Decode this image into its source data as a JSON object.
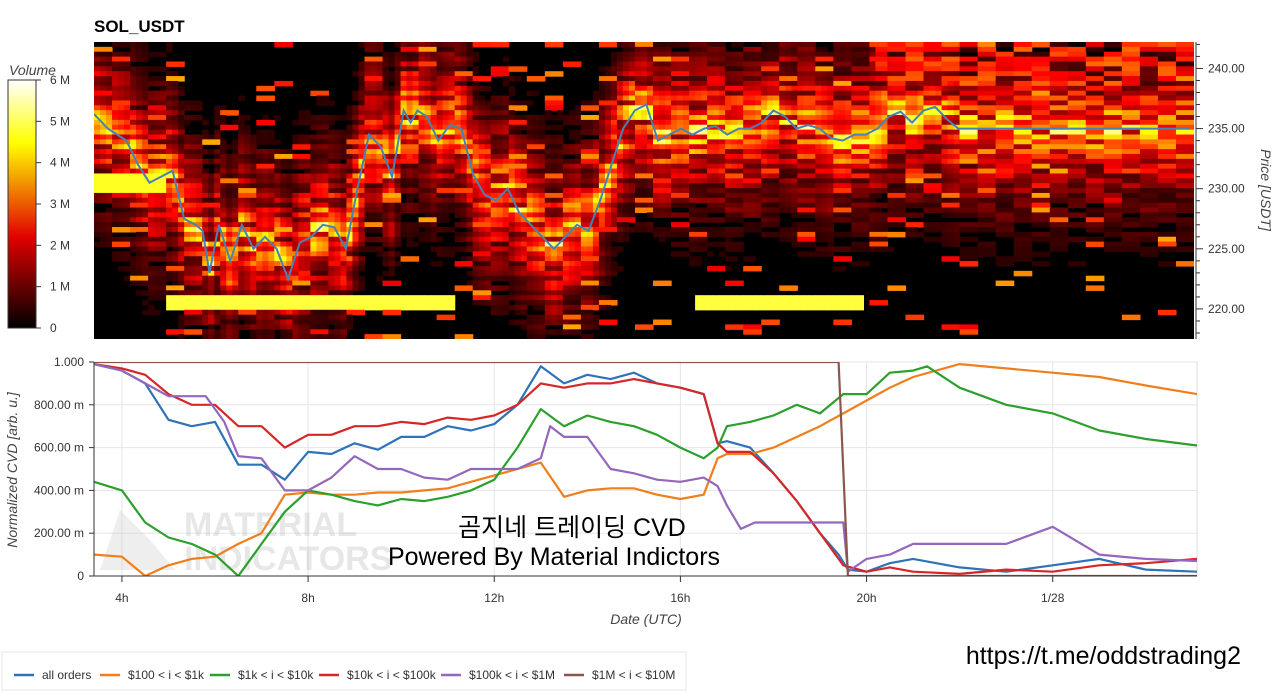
{
  "chart_data": [
    {
      "type": "heatmap",
      "title": "SOL_USDT",
      "colorbar": {
        "label": "Volume",
        "ticks": [
          "0",
          "1 M",
          "2 M",
          "3 M",
          "4 M",
          "5 M",
          "6 M"
        ],
        "range": [
          0,
          6000000
        ],
        "colormap": "hot"
      },
      "ylabel": "Price [USDT]",
      "y_ticks": [
        "220.00",
        "225.00",
        "230.00",
        "235.00",
        "240.00"
      ],
      "ylim": [
        217.5,
        242.2
      ],
      "x_range_hours": [
        2.6,
        50.2
      ],
      "price_series": {
        "name": "price",
        "x": [
          2.6,
          3.2,
          4,
          4.5,
          5,
          5.5,
          6,
          6.5,
          7,
          7.3,
          7.6,
          8,
          8.5,
          9,
          9.5,
          10,
          10.5,
          11,
          11.5,
          12,
          12.5,
          13,
          13.5,
          14,
          14.5,
          15,
          15.5,
          16,
          16.3,
          16.6,
          17,
          17.5,
          18,
          18.5,
          19,
          19.5,
          20,
          20.5,
          21,
          21.5,
          22,
          22.5,
          23,
          23.5,
          24,
          24.5,
          25,
          25.5,
          26,
          26.5,
          27,
          27.5,
          28,
          28.5,
          29,
          29.5,
          30,
          30.5,
          31,
          31.5,
          32,
          32.5,
          33,
          33.5,
          34,
          34.5,
          35,
          35.5,
          36,
          36.5,
          37,
          37.5,
          38,
          38.5,
          39,
          39.5,
          40,
          40.5,
          41,
          41.5,
          42,
          42.5,
          43,
          43.5,
          44,
          44.5,
          45,
          45.5,
          46,
          46.5,
          47,
          47.5,
          48,
          48.5,
          49,
          49.5,
          50
        ],
        "y": [
          236.2,
          235,
          234,
          232,
          230.5,
          231,
          231.5,
          227.5,
          227,
          226.5,
          223,
          227,
          224,
          227,
          225,
          226,
          225,
          222.5,
          225.5,
          226,
          227,
          226.8,
          225,
          230,
          234.5,
          233.5,
          231,
          236.5,
          235.5,
          236.5,
          236,
          234,
          235.3,
          235,
          231.2,
          229.5,
          229,
          230,
          228,
          227,
          226,
          225,
          226,
          227,
          226.5,
          229,
          232,
          235,
          236.5,
          237,
          234,
          234.5,
          235,
          234.5,
          235,
          235.2,
          234.5,
          235,
          235,
          235.5,
          236.5,
          236,
          235,
          235.3,
          235,
          234.2,
          234,
          234.5,
          234.5,
          235,
          236,
          236.4,
          235.5,
          236.5,
          236.8,
          235.8,
          235,
          235,
          235,
          235,
          235,
          235,
          235,
          235,
          235,
          235,
          235,
          235,
          235,
          235,
          235,
          235,
          235,
          235,
          235,
          235,
          235
        ]
      }
    },
    {
      "type": "line",
      "xlabel": "Date (UTC)",
      "ylabel": "Normalized CVD [arb. u.]",
      "x_ticks": [
        "4h",
        "8h",
        "12h",
        "16h",
        "20h",
        "1/28"
      ],
      "x_tick_values": [
        4,
        8,
        12,
        16,
        20,
        24
      ],
      "xlim": [
        3.4,
        27.1
      ],
      "y_ticks": [
        "0",
        "200.00 m",
        "400.00 m",
        "600.00 m",
        "800.00 m",
        "1.000"
      ],
      "ylim": [
        0,
        1
      ],
      "grid": true,
      "legend_position": "bottom",
      "series": [
        {
          "name": "all orders",
          "color": "#2e72b8",
          "x": [
            3.4,
            4.0,
            4.5,
            5.0,
            5.5,
            6.0,
            6.5,
            7.0,
            7.5,
            8.0,
            8.5,
            9.0,
            9.5,
            10.0,
            10.5,
            11.0,
            11.5,
            12.0,
            12.5,
            13.0,
            13.5,
            14.0,
            14.5,
            15.0,
            15.5,
            16.0,
            16.5,
            16.8,
            17.0,
            17.5,
            18.0,
            18.5,
            19.0,
            19.4,
            19.6,
            20.0,
            20.5,
            21.0,
            22.0,
            23.0,
            24.0,
            25.0,
            26.0,
            27.1
          ],
          "y": [
            0.99,
            0.96,
            0.9,
            0.73,
            0.7,
            0.72,
            0.52,
            0.52,
            0.45,
            0.58,
            0.57,
            0.62,
            0.59,
            0.65,
            0.65,
            0.7,
            0.68,
            0.71,
            0.8,
            0.98,
            0.9,
            0.94,
            0.92,
            0.95,
            0.9,
            0.88,
            0.85,
            0.62,
            0.63,
            0.6,
            0.48,
            0.35,
            0.2,
            0.1,
            0.03,
            0.02,
            0.06,
            0.08,
            0.04,
            0.02,
            0.05,
            0.08,
            0.03,
            0.02
          ]
        },
        {
          "name": "$100 < i < $1k",
          "color": "#f07f1b",
          "x": [
            3.4,
            4.0,
            4.5,
            5.0,
            5.5,
            6.0,
            6.5,
            7.0,
            7.5,
            8.0,
            8.5,
            9.0,
            9.5,
            10.0,
            10.5,
            11.0,
            11.5,
            12.0,
            12.5,
            13.0,
            13.5,
            14.0,
            14.5,
            15.0,
            15.5,
            16.0,
            16.5,
            16.8,
            17.0,
            17.5,
            18.0,
            18.5,
            19.0,
            19.5,
            20.0,
            20.5,
            21.0,
            22.0,
            23.0,
            24.0,
            25.0,
            26.0,
            27.1
          ],
          "y": [
            0.1,
            0.09,
            0.0,
            0.05,
            0.08,
            0.09,
            0.15,
            0.2,
            0.38,
            0.39,
            0.38,
            0.38,
            0.39,
            0.39,
            0.4,
            0.41,
            0.44,
            0.47,
            0.5,
            0.53,
            0.37,
            0.4,
            0.41,
            0.41,
            0.38,
            0.36,
            0.38,
            0.55,
            0.57,
            0.57,
            0.6,
            0.65,
            0.7,
            0.76,
            0.82,
            0.88,
            0.93,
            0.99,
            0.97,
            0.95,
            0.93,
            0.89,
            0.85
          ]
        },
        {
          "name": "$1k < i < $10k",
          "color": "#2ca02c",
          "x": [
            3.4,
            4.0,
            4.5,
            5.0,
            5.5,
            6.0,
            6.5,
            7.0,
            7.5,
            8.0,
            8.5,
            9.0,
            9.5,
            10.0,
            10.5,
            11.0,
            11.5,
            12.0,
            12.5,
            13.0,
            13.5,
            14.0,
            14.5,
            15.0,
            15.5,
            16.0,
            16.5,
            16.8,
            17.0,
            17.5,
            18.0,
            18.5,
            19.0,
            19.5,
            20.0,
            20.5,
            21.0,
            21.3,
            22.0,
            23.0,
            24.0,
            25.0,
            26.0,
            27.1
          ],
          "y": [
            0.44,
            0.4,
            0.25,
            0.18,
            0.15,
            0.1,
            0.0,
            0.15,
            0.3,
            0.4,
            0.38,
            0.35,
            0.33,
            0.36,
            0.35,
            0.37,
            0.4,
            0.45,
            0.6,
            0.78,
            0.7,
            0.75,
            0.72,
            0.7,
            0.66,
            0.6,
            0.55,
            0.6,
            0.7,
            0.72,
            0.75,
            0.8,
            0.76,
            0.85,
            0.85,
            0.95,
            0.96,
            0.98,
            0.88,
            0.8,
            0.76,
            0.68,
            0.64,
            0.61
          ]
        },
        {
          "name": "$10k < i < $100k",
          "color": "#d62728",
          "x": [
            3.4,
            4.0,
            4.5,
            5.0,
            5.5,
            6.0,
            6.5,
            7.0,
            7.5,
            8.0,
            8.5,
            9.0,
            9.5,
            10.0,
            10.5,
            11.0,
            11.5,
            12.0,
            12.5,
            13.0,
            13.5,
            14.0,
            14.5,
            15.0,
            15.5,
            16.0,
            16.5,
            16.8,
            17.0,
            17.5,
            18.0,
            18.5,
            19.0,
            19.5,
            20.0,
            20.5,
            21.0,
            22.0,
            23.0,
            24.0,
            25.0,
            26.0,
            27.1
          ],
          "y": [
            0.99,
            0.97,
            0.94,
            0.85,
            0.8,
            0.8,
            0.7,
            0.7,
            0.6,
            0.66,
            0.66,
            0.7,
            0.7,
            0.72,
            0.71,
            0.74,
            0.73,
            0.75,
            0.8,
            0.9,
            0.88,
            0.9,
            0.9,
            0.92,
            0.9,
            0.88,
            0.85,
            0.62,
            0.58,
            0.58,
            0.48,
            0.35,
            0.2,
            0.05,
            0.02,
            0.04,
            0.02,
            0.01,
            0.03,
            0.02,
            0.05,
            0.06,
            0.08
          ]
        },
        {
          "name": "$100k < i < $1M",
          "color": "#9467bd",
          "x": [
            3.4,
            4.0,
            4.5,
            5.0,
            5.2,
            5.8,
            6.2,
            6.5,
            7.0,
            7.5,
            8.0,
            8.5,
            9.0,
            9.5,
            10.0,
            10.5,
            11.0,
            11.5,
            12.0,
            12.5,
            13.0,
            13.2,
            13.5,
            14.0,
            14.5,
            15.0,
            15.5,
            16.0,
            16.5,
            16.8,
            17.0,
            17.3,
            17.6,
            18.0,
            18.5,
            19.0,
            19.5,
            19.6,
            20.0,
            20.5,
            21.0,
            22.0,
            23.0,
            24.0,
            25.0,
            26.0,
            27.1
          ],
          "y": [
            0.99,
            0.96,
            0.9,
            0.84,
            0.84,
            0.84,
            0.72,
            0.56,
            0.55,
            0.4,
            0.4,
            0.46,
            0.56,
            0.5,
            0.5,
            0.46,
            0.45,
            0.5,
            0.5,
            0.5,
            0.55,
            0.7,
            0.65,
            0.65,
            0.5,
            0.48,
            0.45,
            0.44,
            0.46,
            0.42,
            0.33,
            0.22,
            0.25,
            0.25,
            0.25,
            0.25,
            0.25,
            0.02,
            0.08,
            0.1,
            0.15,
            0.15,
            0.15,
            0.23,
            0.1,
            0.08,
            0.07
          ]
        },
        {
          "name": "$1M < i < $10M",
          "color": "#8c564b",
          "x": [
            3.4,
            19.4,
            19.6,
            27.1
          ],
          "y": [
            1.0,
            1.0,
            0.0,
            0.0
          ]
        }
      ]
    }
  ],
  "overlay": {
    "title_text": "곰지네 트레이딩 CVD",
    "subtitle_text": "Powered By Material Indictors",
    "link_text": "https://t.me/oddstrading2",
    "watermark_lines": [
      "MATERIAL",
      "INDICATORS"
    ]
  }
}
